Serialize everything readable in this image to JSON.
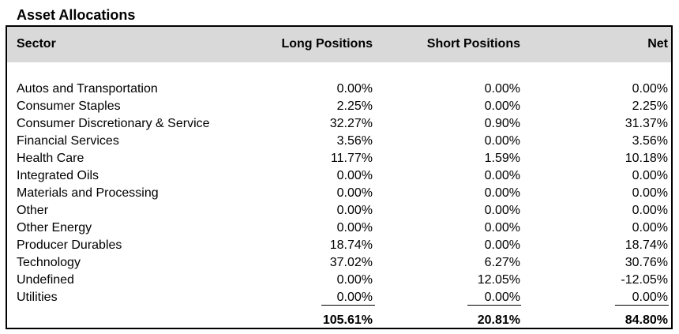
{
  "title": "Asset Allocations",
  "columns": {
    "sector": "Sector",
    "long": "Long Positions",
    "short": "Short Positions",
    "net": "Net"
  },
  "rows": [
    {
      "sector": "Autos and Transportation",
      "long": "0.00%",
      "short": "0.00%",
      "net": "0.00%"
    },
    {
      "sector": "Consumer Staples",
      "long": "2.25%",
      "short": "0.00%",
      "net": "2.25%"
    },
    {
      "sector": "Consumer Discretionary & Service",
      "long": "32.27%",
      "short": "0.90%",
      "net": "31.37%"
    },
    {
      "sector": "Financial Services",
      "long": "3.56%",
      "short": "0.00%",
      "net": "3.56%"
    },
    {
      "sector": "Health Care",
      "long": "11.77%",
      "short": "1.59%",
      "net": "10.18%"
    },
    {
      "sector": "Integrated Oils",
      "long": "0.00%",
      "short": "0.00%",
      "net": "0.00%"
    },
    {
      "sector": "Materials and Processing",
      "long": "0.00%",
      "short": "0.00%",
      "net": "0.00%"
    },
    {
      "sector": "Other",
      "long": "0.00%",
      "short": "0.00%",
      "net": "0.00%"
    },
    {
      "sector": "Other Energy",
      "long": "0.00%",
      "short": "0.00%",
      "net": "0.00%"
    },
    {
      "sector": "Producer Durables",
      "long": "18.74%",
      "short": "0.00%",
      "net": "18.74%"
    },
    {
      "sector": "Technology",
      "long": "37.02%",
      "short": "6.27%",
      "net": "30.76%"
    },
    {
      "sector": "Undefined",
      "long": "0.00%",
      "short": "12.05%",
      "net": "-12.05%"
    },
    {
      "sector": "Utilities",
      "long": "0.00%",
      "short": "0.00%",
      "net": "0.00%"
    }
  ],
  "totals": {
    "long": "105.61%",
    "short": "20.81%",
    "net": "84.80%"
  }
}
